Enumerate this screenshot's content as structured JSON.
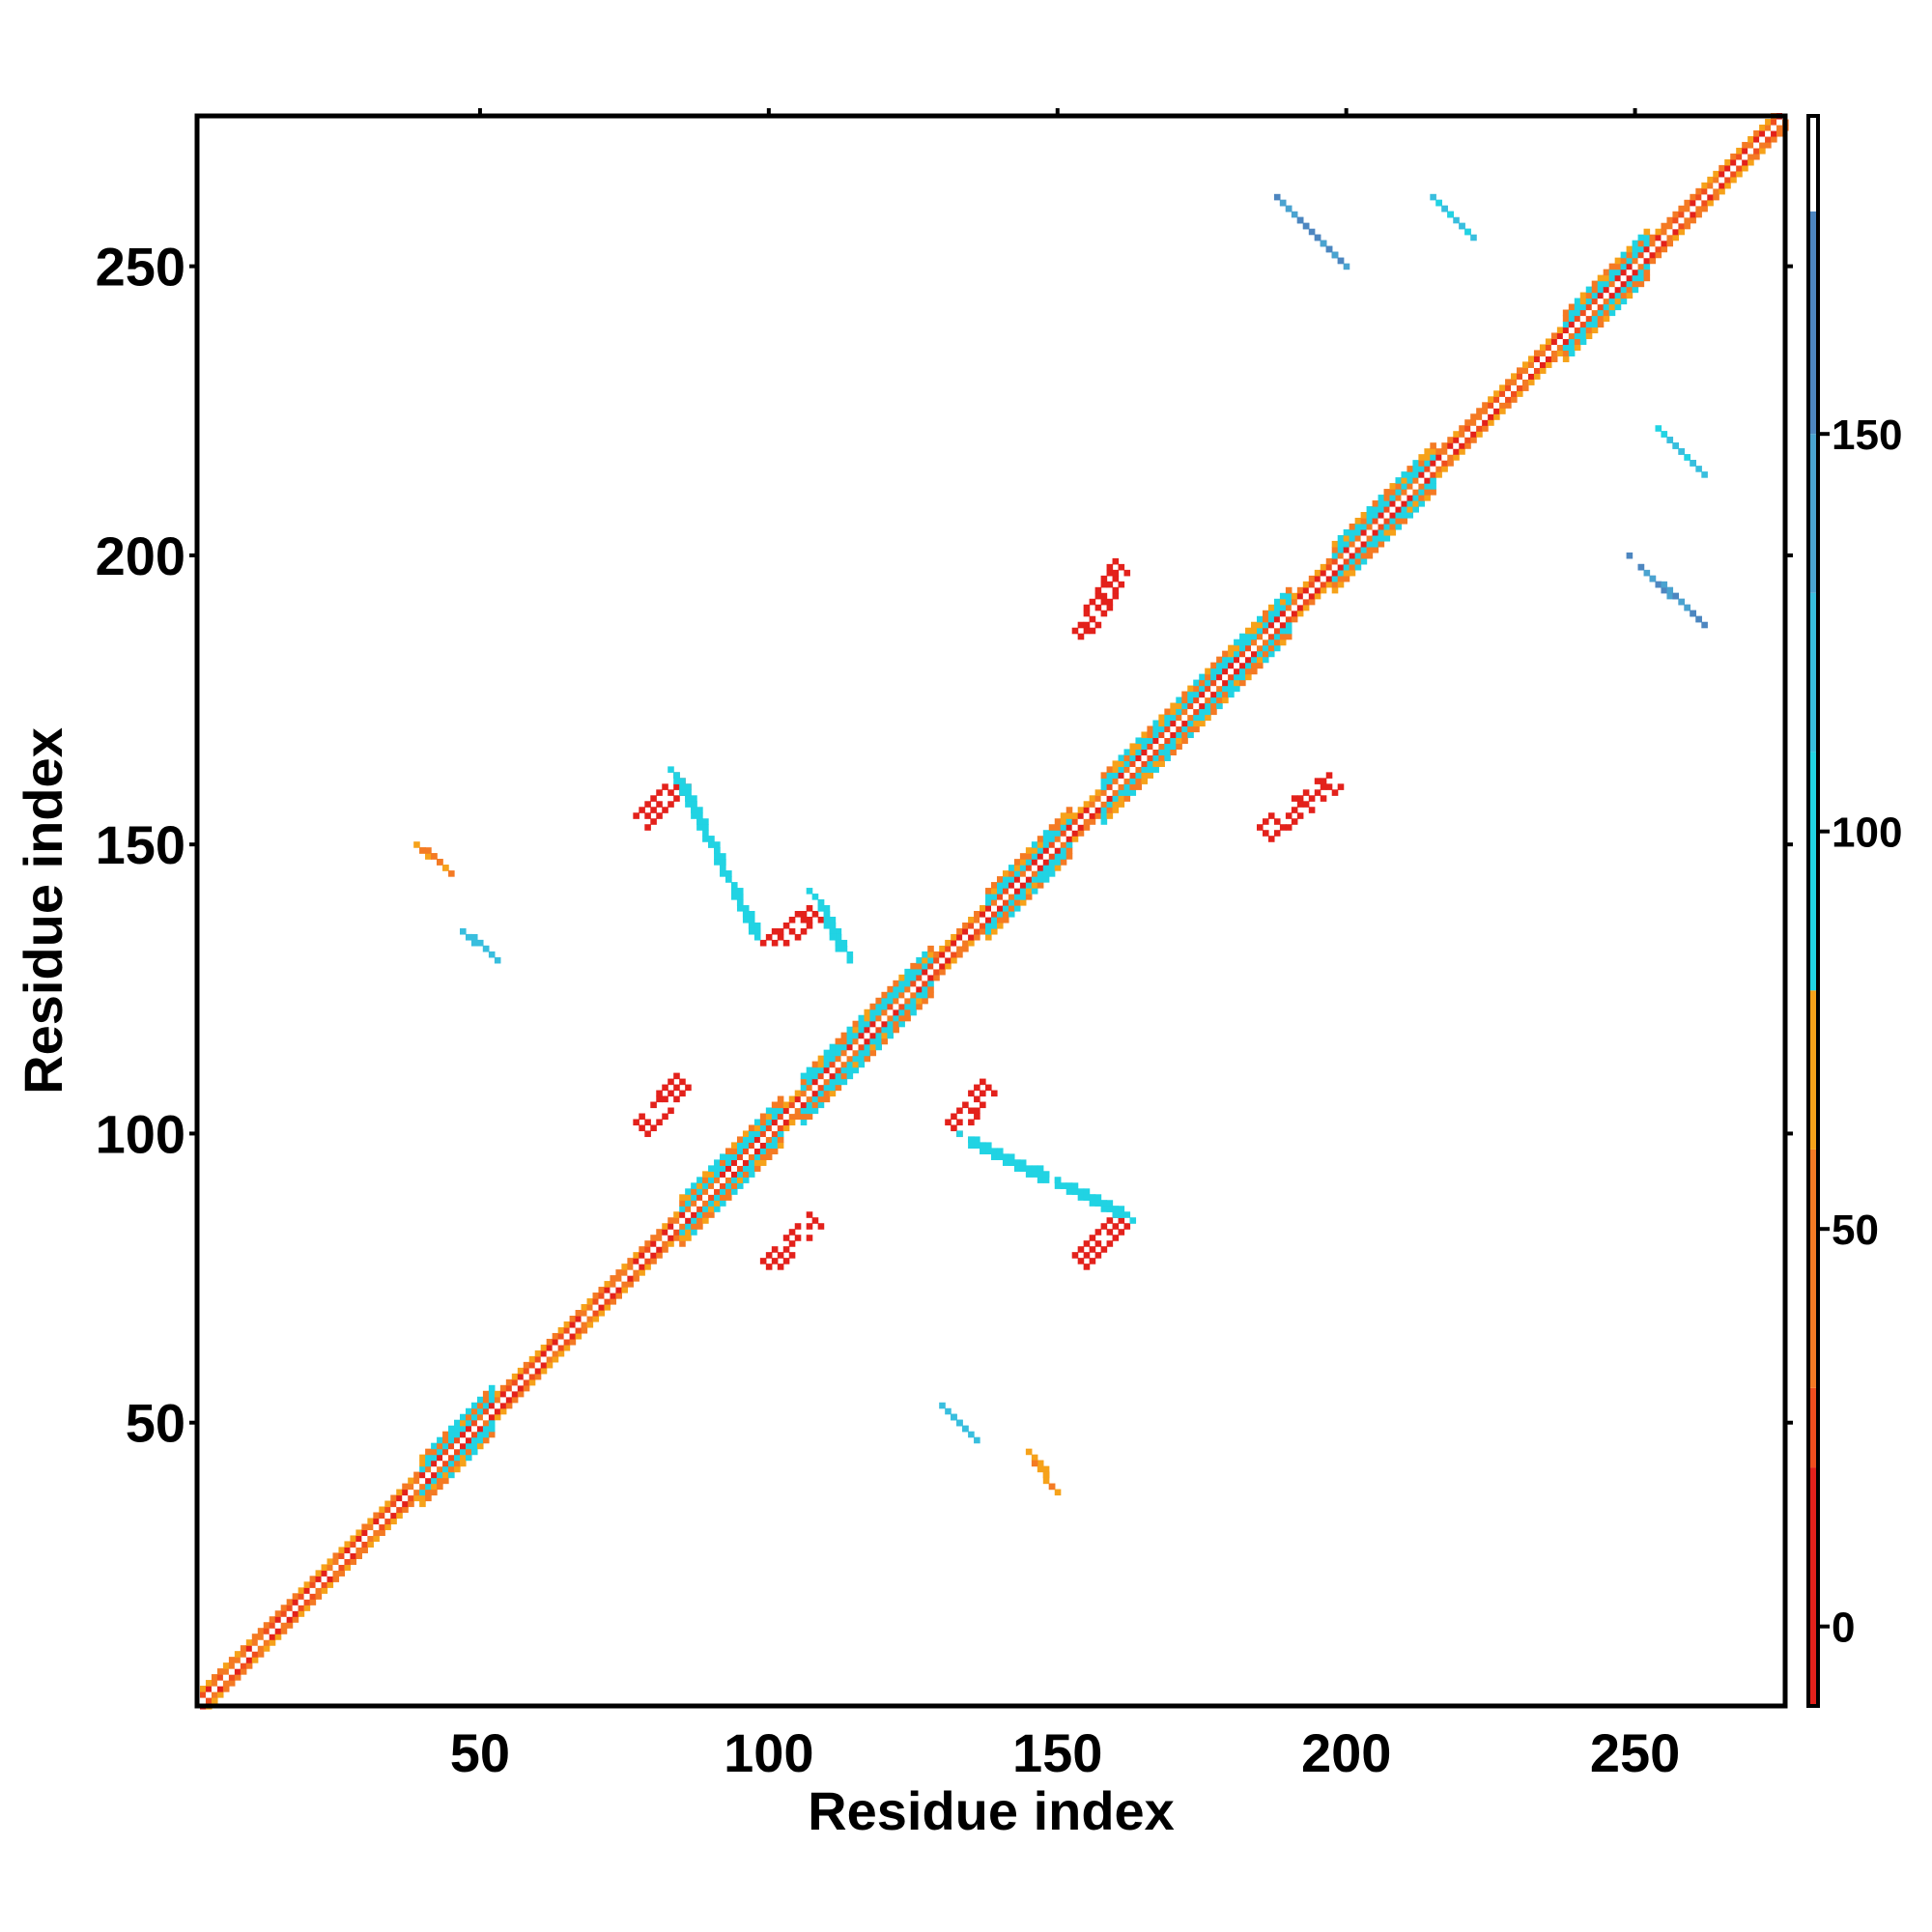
{
  "chart_data": {
    "type": "heatmap",
    "title": "",
    "xlabel": "Residue index",
    "ylabel": "Residue index",
    "xlim": [
      1,
      276
    ],
    "ylim": [
      1,
      276
    ],
    "x_ticks": [
      50,
      100,
      150,
      200,
      250
    ],
    "y_ticks": [
      50,
      100,
      150,
      200,
      250
    ],
    "x_tick_labels": [
      "50",
      "100",
      "150",
      "200",
      "250"
    ],
    "y_tick_labels": [
      "50",
      "100",
      "150",
      "200",
      "250"
    ],
    "colorbar": {
      "range": [
        -10,
        190
      ],
      "ticks": [
        0,
        50,
        100,
        150
      ],
      "tick_labels": [
        "0",
        "50",
        "100",
        "150"
      ],
      "bands": [
        {
          "from": -10,
          "to": 20,
          "color": "#e3211b"
        },
        {
          "from": 20,
          "to": 30,
          "color": "#f04e1e"
        },
        {
          "from": 30,
          "to": 60,
          "color": "#f47a24"
        },
        {
          "from": 60,
          "to": 80,
          "color": "#f6a21a"
        },
        {
          "from": 80,
          "to": 110,
          "color": "#21d3e3"
        },
        {
          "from": 110,
          "to": 130,
          "color": "#38bede"
        },
        {
          "from": 130,
          "to": 150,
          "color": "#4aa3d0"
        },
        {
          "from": 150,
          "to": 178,
          "color": "#4d86c0"
        },
        {
          "from": 178,
          "to": 190,
          "color": "#ffffff"
        }
      ]
    },
    "diagonal": {
      "start": 2,
      "end": 276,
      "helix_segments": [
        [
          40,
          52
        ],
        [
          85,
          102
        ],
        [
          106,
          128
        ],
        [
          138,
          152
        ],
        [
          158,
          190
        ],
        [
          198,
          215
        ],
        [
          238,
          252
        ]
      ]
    },
    "regions": [
      {
        "x": [
          78,
          85
        ],
        "y": [
          101,
          109
        ],
        "value": 10
      },
      {
        "x": [
          100,
          108
        ],
        "y": [
          77,
          85
        ],
        "value": 10
      },
      {
        "x": [
          132,
          138
        ],
        "y": [
          101,
          108
        ],
        "value": 10
      },
      {
        "x": [
          154,
          161
        ],
        "y": [
          78,
          85
        ],
        "value": 10
      },
      {
        "x": [
          78,
          85
        ],
        "y": [
          154,
          161
        ],
        "value": 10
      },
      {
        "x": [
          100,
          108
        ],
        "y": [
          132,
          138
        ],
        "value": 10
      },
      {
        "x": [
          154,
          161
        ],
        "y": [
          186,
          198
        ],
        "value": 10
      },
      {
        "x": [
          186,
          198
        ],
        "y": [
          152,
          161
        ],
        "value": 10
      },
      {
        "x": [
          189,
          199
        ],
        "y": [
          251,
          261
        ],
        "value": 150
      },
      {
        "x": [
          216,
          221
        ],
        "y": [
          256,
          261
        ],
        "value": 115
      },
      {
        "x": [
          250,
          261
        ],
        "y": [
          189,
          199
        ],
        "value": 150
      },
      {
        "x": [
          255,
          261
        ],
        "y": [
          215,
          221
        ],
        "value": 115
      },
      {
        "x": [
          134,
          162
        ],
        "y": [
          86,
          99
        ],
        "value": 90
      },
      {
        "x": [
          84,
          98
        ],
        "y": [
          134,
          162
        ],
        "value": 90
      },
      {
        "x": [
          108,
          113
        ],
        "y": [
          131,
          141
        ],
        "value": 90
      },
      {
        "x": [
          40,
          44
        ],
        "y": [
          146,
          149
        ],
        "value": 60
      },
      {
        "x": [
          48,
          52
        ],
        "y": [
          131,
          134
        ],
        "value": 120
      },
      {
        "x": [
          131,
          135
        ],
        "y": [
          48,
          52
        ],
        "value": 120
      },
      {
        "x": [
          146,
          149
        ],
        "y": [
          39,
          44
        ],
        "value": 60
      }
    ]
  }
}
